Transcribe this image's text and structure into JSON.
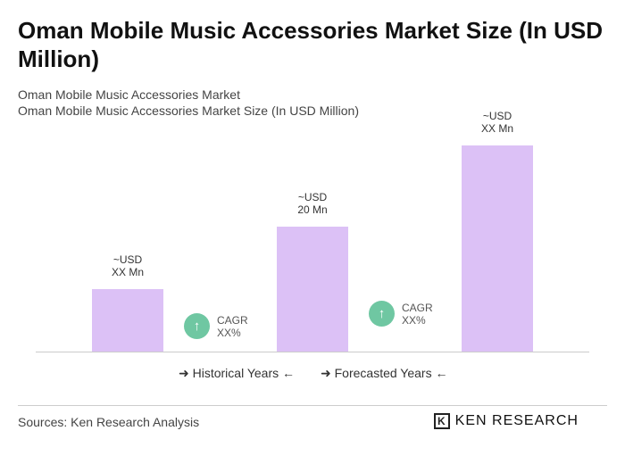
{
  "title": "Oman Mobile Music Accessories Market Size (In USD Million)",
  "subtitle1": "Oman Mobile Music Accessories Market",
  "subtitle2": "Oman Mobile Music Accessories Market Size (In USD Million)",
  "chart_data": {
    "type": "bar",
    "categories": [
      "",
      "",
      ""
    ],
    "values": [
      10,
      20,
      33
    ],
    "data_labels": [
      {
        "l1": "~USD",
        "l2": "XX Mn"
      },
      {
        "l1": "~USD",
        "l2": "20 Mn"
      },
      {
        "l1": "~USD",
        "l2": "XX Mn"
      }
    ],
    "bar_color": "#dcc1f6",
    "cagr": [
      {
        "l1": "CAGR",
        "l2": "XX%"
      },
      {
        "l1": "CAGR",
        "l2": "XX%"
      }
    ],
    "cagr_color": "#6fc7a2",
    "legend": [
      "Historical Years",
      "Forecasted Years"
    ]
  },
  "source": "Sources: Ken Research Analysis",
  "logo": "KEN RESEARCH"
}
